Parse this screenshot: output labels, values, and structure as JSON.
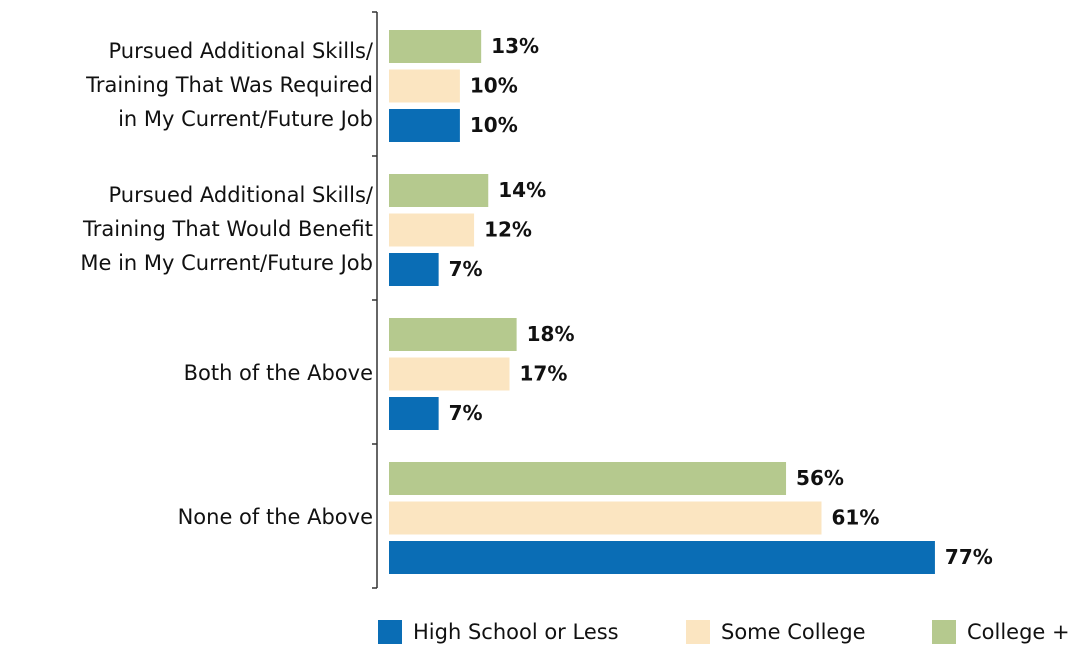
{
  "chart_data": {
    "type": "bar",
    "orientation": "horizontal",
    "categories": [
      "Pursued Additional Skills/\nTraining That Was Required\nin My Current/Future Job",
      "Pursued Additional Skills/\nTraining That Would Benefit\nMe in My Current/Future Job",
      "Both of the Above",
      "None of the Above"
    ],
    "series": [
      {
        "name": "High School or Less",
        "color": "#0a6db5",
        "values": [
          10,
          7,
          7,
          77
        ],
        "value_labels": [
          "10%",
          "7%",
          "7%",
          "77%"
        ]
      },
      {
        "name": "Some College",
        "color": "#fbe5c1",
        "values": [
          10,
          12,
          17,
          61
        ],
        "value_labels": [
          "10%",
          "12%",
          "17%",
          "61%"
        ]
      },
      {
        "name": "College +",
        "color": "#b5c98e",
        "values": [
          13,
          14,
          18,
          56
        ],
        "value_labels": [
          "13%",
          "14%",
          "18%",
          "56%"
        ]
      }
    ],
    "legend": "bottom"
  }
}
